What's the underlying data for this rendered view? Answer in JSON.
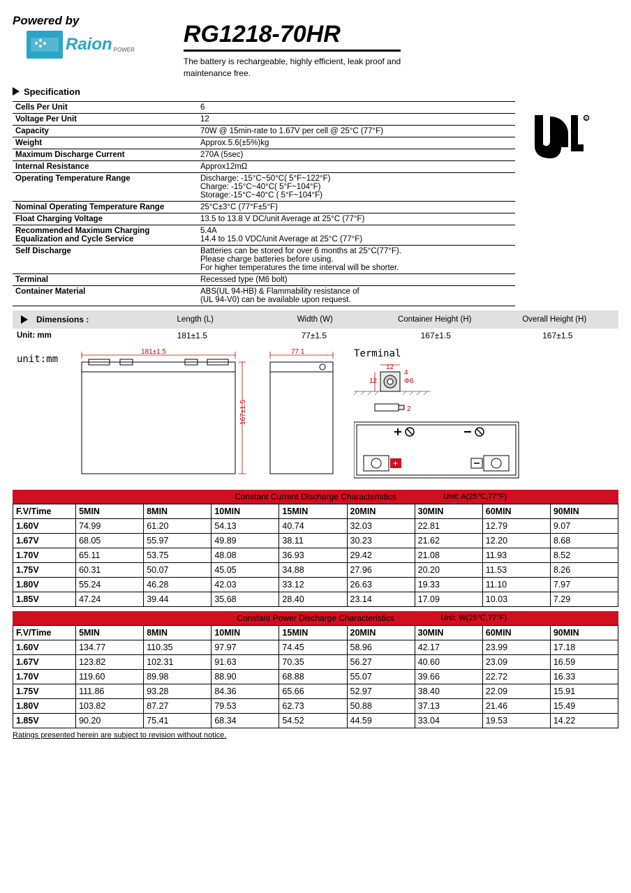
{
  "header": {
    "powered_by": "Powered by",
    "logo_text": "Raion",
    "logo_sub": "POWER",
    "model": "RG1218-70HR",
    "desc": "The battery is rechargeable, highly efficient, leak proof and\n maintenance free."
  },
  "spec_section_title": "Specification",
  "spec_rows": [
    {
      "label": "Cells Per Unit",
      "value": "6"
    },
    {
      "label": "Voltage Per Unit",
      "value": "12"
    },
    {
      "label": "Capacity",
      "value": "70W @ 15min-rate to 1.67V per cell @ 25°C (77°F)"
    },
    {
      "label": "Weight",
      "value": "Approx.5.6(±5%)kg"
    },
    {
      "label": "Maximum Discharge Current",
      "value": "270A (5sec)"
    },
    {
      "label": "Internal Resistance",
      "value": "Approx12mΩ"
    },
    {
      "label": "Operating Temperature Range",
      "value": "Discharge: -15°C~50°C( 5°F~122°F)\nCharge: -15°C~40°C( 5°F~104°F)\nStorage:-15°C~40°C ( 5°F~104°F)"
    },
    {
      "label": "Nominal Operating Temperature Range",
      "value": "25°C±3°C (77°F±5°F)"
    },
    {
      "label": "Float Charging Voltage",
      "value": "13.5 to 13.8 V DC/unit Average at 25°C (77°F)"
    },
    {
      "label": "Recommended Maximum Charging Equalization and Cycle Service",
      "value": "5.4A\n14.4 to 15.0 VDC/unit Average at 25°C (77°F)"
    },
    {
      "label": "Self Discharge",
      "value": "Batteries can be stored for over 6 months at 25°C(77°F).\nPlease charge batteries before using.\nFor higher temperatures the time interval will be shorter."
    },
    {
      "label": "Terminal",
      "value": "Recessed type (M6 bolt)"
    },
    {
      "label": "Container Material",
      "value": "ABS(UL 94-HB) & Flammability resistance of\n(UL 94-V0) can be available upon request."
    }
  ],
  "dimensions": {
    "title": "Dimensions :",
    "unit_label": "Unit: mm",
    "headers": [
      "Length (L)",
      "Width (W)",
      "Container Height (H)",
      "Overall Height (H)"
    ],
    "values": [
      "181±1.5",
      "77±1.5",
      "167±1.5",
      "167±1.5"
    ],
    "diagram_unit": "unit:mm",
    "dim_length": "181±1.5",
    "dim_width": "77  1",
    "dim_height": "167±1.5",
    "terminal_label": "Terminal",
    "term_dims": {
      "w12": "12",
      "h12": "12",
      "d6": "Φ6",
      "a4": "4",
      "b2": "2"
    }
  },
  "discharge_current": {
    "title": "Constant Current Discharge Characteristics",
    "unit": "Unit: A(25℃,77°F)",
    "headers": [
      "F.V/Time",
      "5MIN",
      "8MIN",
      "10MIN",
      "15MIN",
      "20MIN",
      "30MIN",
      "60MIN",
      "90MIN"
    ],
    "rows": [
      [
        "1.60V",
        "74.99",
        "61.20",
        "54.13",
        "40.74",
        "32.03",
        "22.81",
        "12.79",
        "9.07"
      ],
      [
        "1.67V",
        "68.05",
        "55.97",
        "49.89",
        "38.11",
        "30.23",
        "21.62",
        "12.20",
        "8.68"
      ],
      [
        "1.70V",
        "65.11",
        "53.75",
        "48.08",
        "36.93",
        "29.42",
        "21.08",
        "11.93",
        "8.52"
      ],
      [
        "1.75V",
        "60.31",
        "50.07",
        "45.05",
        "34.88",
        "27.96",
        "20.20",
        "11.53",
        "8.26"
      ],
      [
        "1.80V",
        "55.24",
        "46.28",
        "42.03",
        "33.12",
        "26.63",
        "19.33",
        "11.10",
        "7.97"
      ],
      [
        "1.85V",
        "47.24",
        "39.44",
        "35.68",
        "28.40",
        "23.14",
        "17.09",
        "10.03",
        "7.29"
      ]
    ]
  },
  "discharge_power": {
    "title": "Constant Power Discharge Characteristics",
    "unit": "Unit: W(25℃,77°F)",
    "headers": [
      "F.V/Time",
      "5MIN",
      "8MIN",
      "10MIN",
      "15MIN",
      "20MIN",
      "30MIN",
      "60MIN",
      "90MIN"
    ],
    "rows": [
      [
        "1.60V",
        "134.77",
        "110.35",
        "97.97",
        "74.45",
        "58.96",
        "42.17",
        "23.99",
        "17.18"
      ],
      [
        "1.67V",
        "123.82",
        "102.31",
        "91.63",
        "70.35",
        "56.27",
        "40.60",
        "23.09",
        "16.59"
      ],
      [
        "1.70V",
        "119.60",
        "89.98",
        "88.90",
        "68.88",
        "55.07",
        "39.66",
        "22.72",
        "16.33"
      ],
      [
        "1.75V",
        "111.86",
        "93.28",
        "84.36",
        "65.66",
        "52.97",
        "38.40",
        "22.09",
        "15.91"
      ],
      [
        "1.80V",
        "103.82",
        "87.27",
        "79.53",
        "62.73",
        "50.88",
        "37.13",
        "21.46",
        "15.49"
      ],
      [
        "1.85V",
        "90.20",
        "75.41",
        "68.34",
        "54.52",
        "44.59",
        "33.04",
        "19.53",
        "14.22"
      ]
    ]
  },
  "footer": "Ratings presented herein are subject to revision without notice.",
  "colors": {
    "brand": "#2aa5c8",
    "dim_red": "#cc0000",
    "hdr_red": "#d01020",
    "grey_bg": "#e0e0e0"
  }
}
